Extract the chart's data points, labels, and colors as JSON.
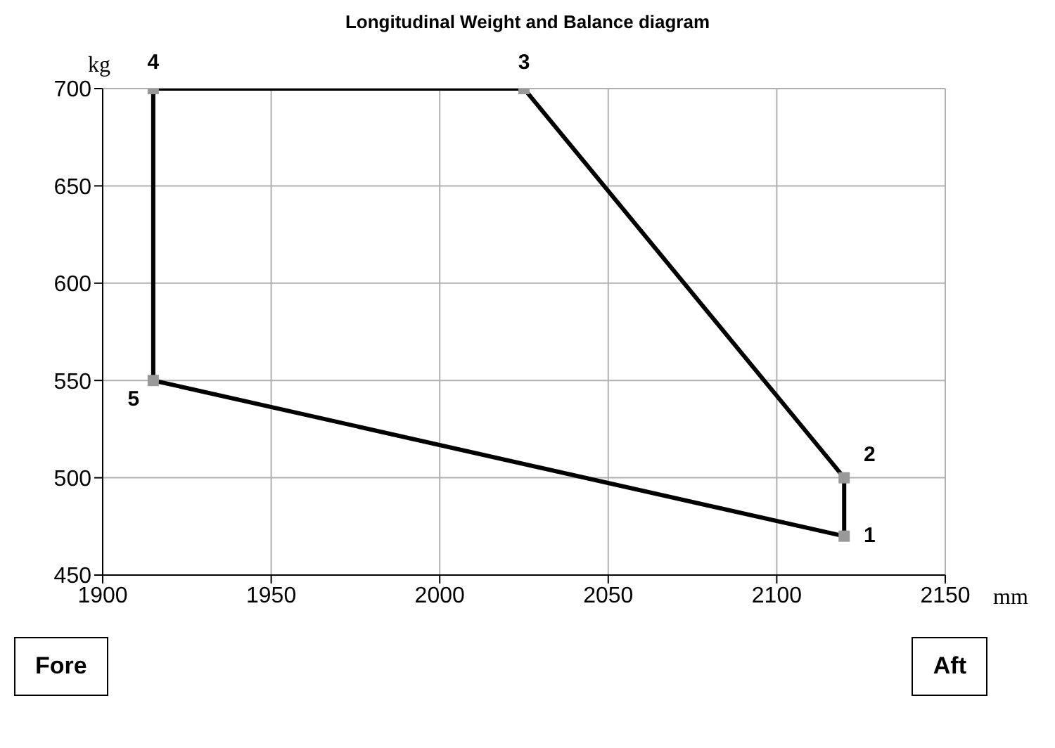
{
  "chart_data": {
    "type": "line",
    "title": "Longitudinal Weight and Balance diagram",
    "xlabel": "mm",
    "ylabel": "kg",
    "series": [
      {
        "color": "#000000",
        "x": [
          1915,
          1915,
          2025,
          2120,
          2120
        ],
        "values": [
          550,
          700,
          700,
          500,
          470
        ]
      },
      {
        "color": "#000000",
        "x": [
          1915,
          2120
        ],
        "values": [
          550,
          470
        ]
      },
      {
        "type": "scatter",
        "marker": "square",
        "color": "#999999",
        "x": [
          2120,
          2120,
          2025,
          1915,
          1915
        ],
        "values": [
          470,
          500,
          700,
          700,
          550
        ]
      }
    ],
    "xlim": [
      1900,
      2150
    ],
    "xticks": [
      1900,
      1950,
      2000,
      2050,
      2100,
      2150
    ],
    "ylim": [
      450,
      700
    ],
    "yticks": [
      450,
      500,
      550,
      600,
      650,
      700
    ],
    "grid": true,
    "line_style": "solid",
    "annotations": [
      {
        "text": "1",
        "x": 2120,
        "y": 470
      },
      {
        "text": "2",
        "x": 2120,
        "y": 500
      },
      {
        "text": "3",
        "x": 2025,
        "y": 700
      },
      {
        "text": "4",
        "x": 1915,
        "y": 700
      },
      {
        "text": "5",
        "x": 1915,
        "y": 550
      },
      "Fore",
      "Aft"
    ]
  }
}
